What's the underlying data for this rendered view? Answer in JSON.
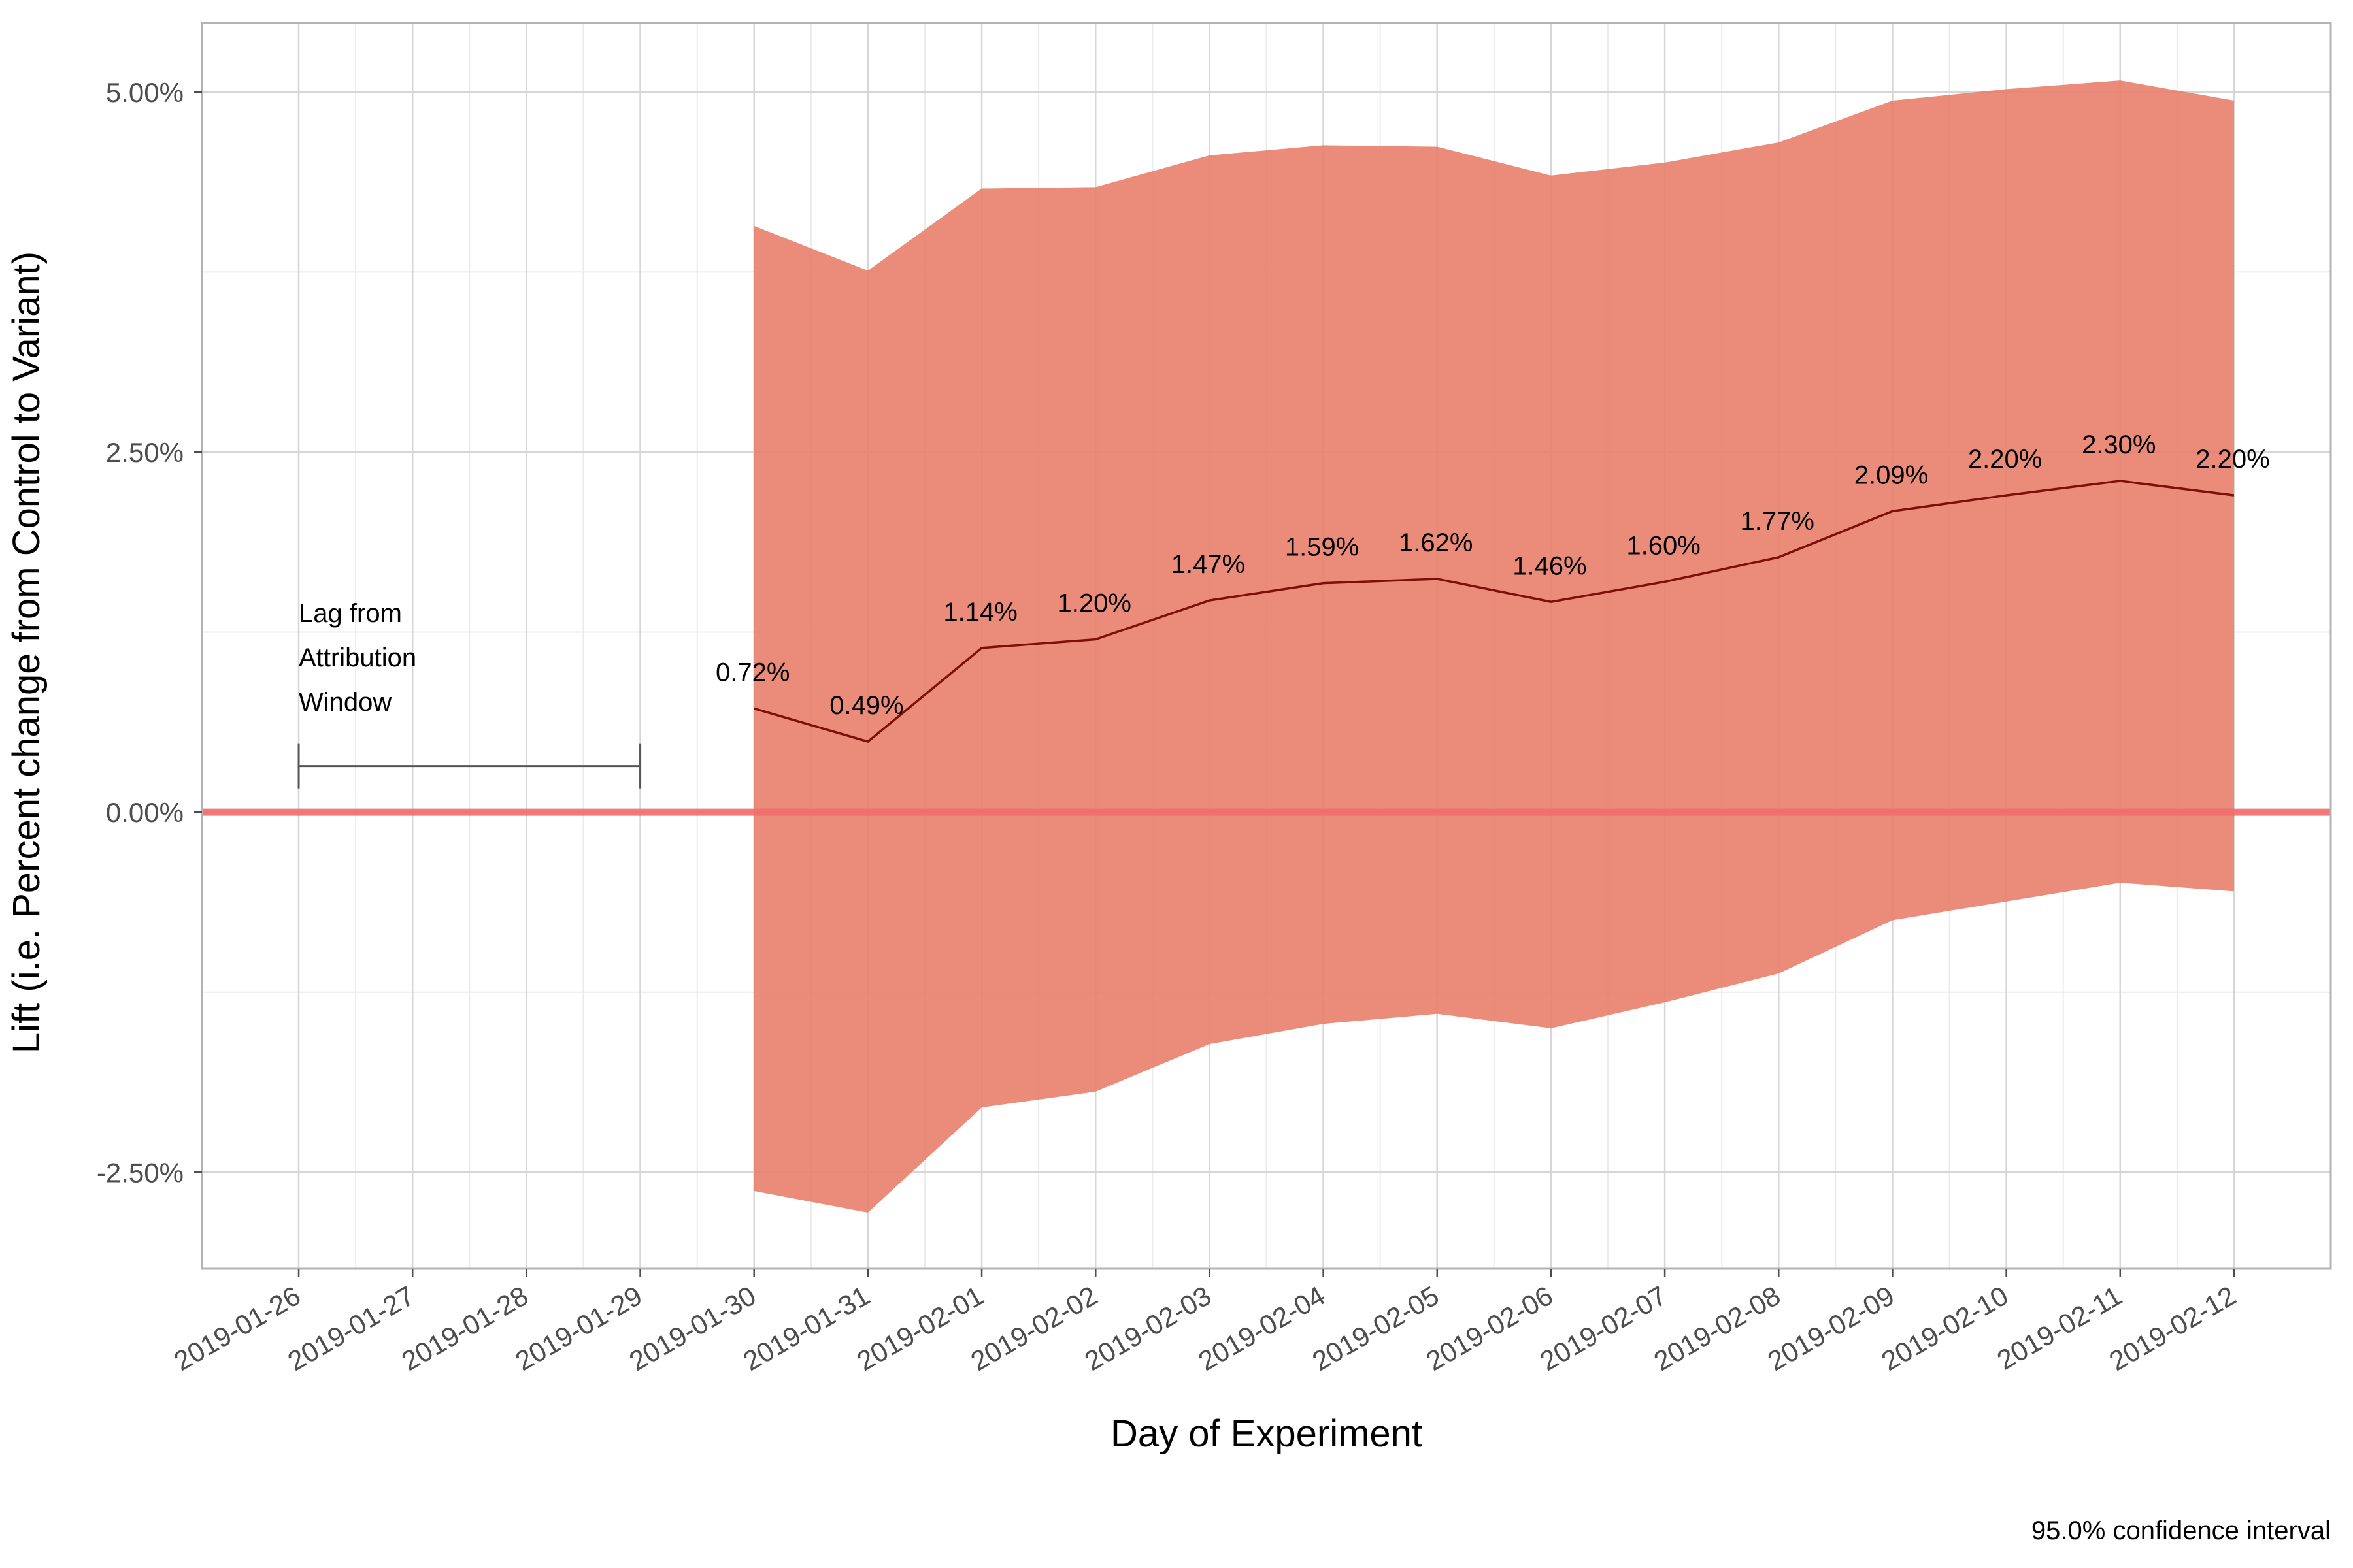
{
  "chart_data": {
    "type": "line",
    "title": "",
    "xlabel": "Day of Experiment",
    "ylabel": "Lift (i.e. Percent change from Control to Variant)",
    "caption": "95.0% confidence interval",
    "categories": [
      "2019-01-26",
      "2019-01-27",
      "2019-01-28",
      "2019-01-29",
      "2019-01-30",
      "2019-01-31",
      "2019-02-01",
      "2019-02-02",
      "2019-02-03",
      "2019-02-04",
      "2019-02-05",
      "2019-02-06",
      "2019-02-07",
      "2019-02-08",
      "2019-02-09",
      "2019-02-10",
      "2019-02-11",
      "2019-02-12"
    ],
    "xlim": [
      "2019-01-25.15",
      "2019-02-12.85"
    ],
    "ylim": [
      -3.17,
      5.48
    ],
    "y_ticks": [
      -2.5,
      0,
      2.5,
      5
    ],
    "y_tick_labels": [
      "-2.50%",
      "0.00%",
      "2.50%",
      "5.00%"
    ],
    "series": [
      {
        "x": [
          "2019-01-30",
          "2019-01-31",
          "2019-02-01",
          "2019-02-02",
          "2019-02-03",
          "2019-02-04",
          "2019-02-05",
          "2019-02-06",
          "2019-02-07",
          "2019-02-08",
          "2019-02-09",
          "2019-02-10",
          "2019-02-11",
          "2019-02-12"
        ],
        "values": [
          0.72,
          0.49,
          1.14,
          1.2,
          1.47,
          1.59,
          1.62,
          1.46,
          1.6,
          1.77,
          2.09,
          2.2,
          2.3,
          2.2
        ],
        "labels": [
          "0.72%",
          "0.49%",
          "1.14%",
          "1.20%",
          "1.47%",
          "1.59%",
          "1.62%",
          "1.46%",
          "1.60%",
          "1.77%",
          "2.09%",
          "2.20%",
          "2.30%",
          "2.20%"
        ],
        "lower": [
          -2.63,
          -2.78,
          -2.05,
          -1.94,
          -1.61,
          -1.47,
          -1.4,
          -1.5,
          -1.32,
          -1.12,
          -0.75,
          -0.62,
          -0.49,
          -0.55
        ],
        "upper": [
          4.07,
          3.76,
          4.33,
          4.34,
          4.56,
          4.63,
          4.62,
          4.42,
          4.51,
          4.65,
          4.94,
          5.02,
          5.08,
          4.94
        ],
        "color": "#7b1008",
        "band_color": "#e8806a"
      }
    ],
    "reference_line": {
      "y": 0,
      "color": "#f26b6b"
    },
    "annotation": {
      "lines": [
        "Lag from",
        "Attribution",
        "Window"
      ],
      "bracket_start": "2019-01-26",
      "bracket_end": "2019-01-29",
      "bracket_y": 0.32
    },
    "grid": true,
    "legend": "none"
  }
}
